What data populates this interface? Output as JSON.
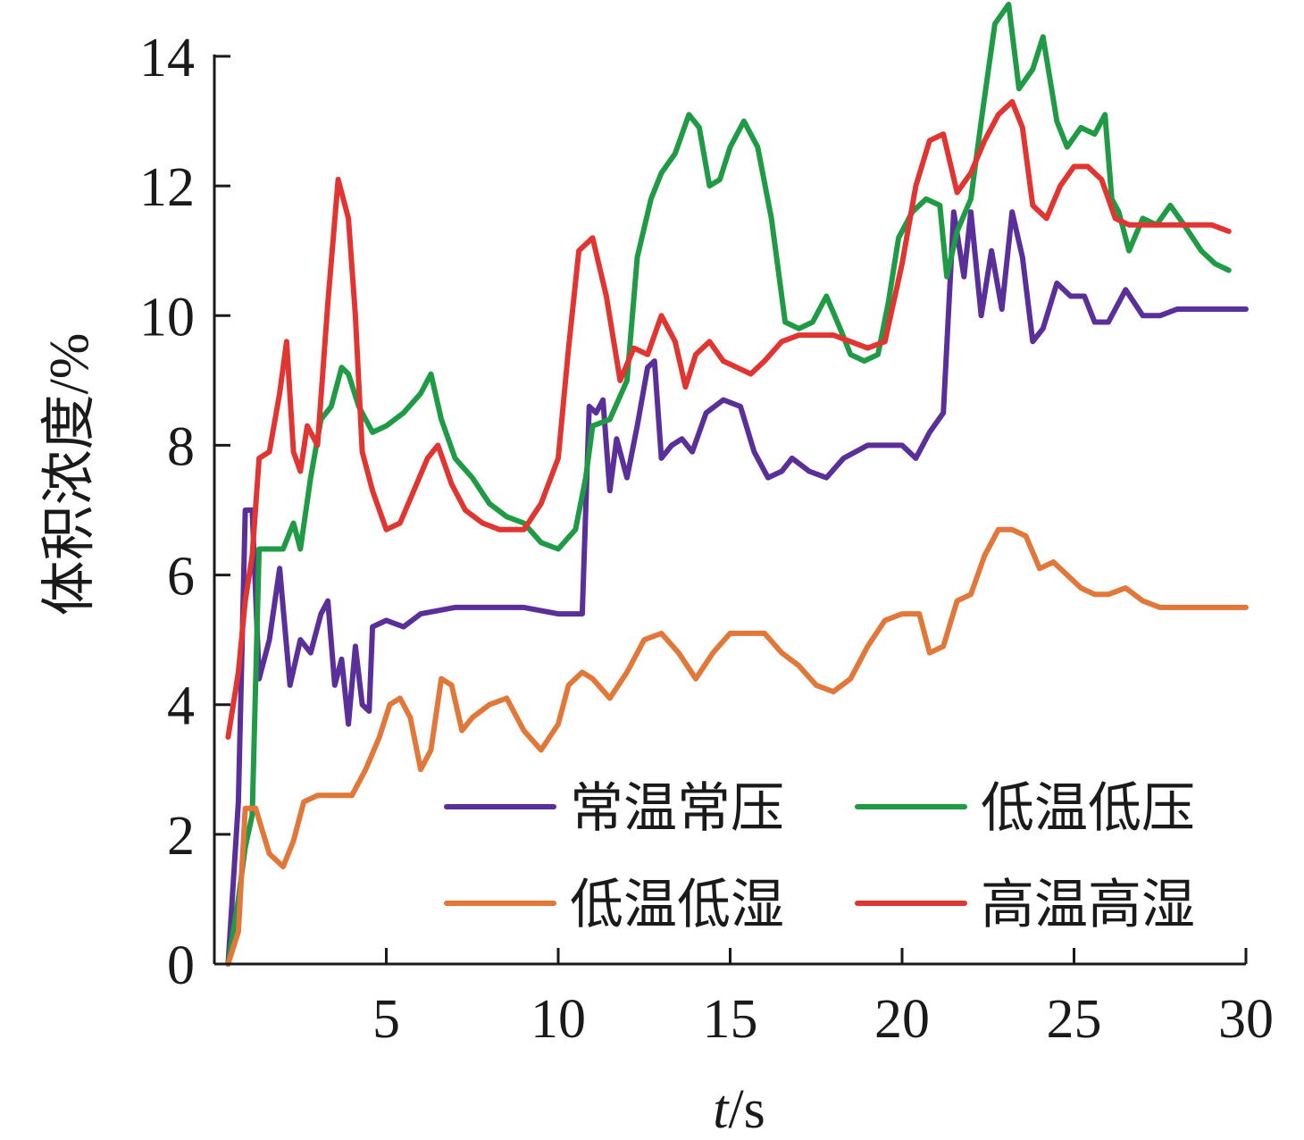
{
  "chart_data": {
    "type": "line",
    "xlabel_italic": "t",
    "xlabel_unit": "/s",
    "ylabel": "体积浓度/%",
    "xlim": [
      0,
      30
    ],
    "ylim": [
      0,
      14
    ],
    "x_ticks": [
      5,
      10,
      15,
      20,
      25,
      30
    ],
    "y_ticks": [
      0,
      2,
      4,
      6,
      8,
      10,
      12,
      14
    ],
    "legend_position": "lower-right",
    "grid": false,
    "series": [
      {
        "name": "常温常压",
        "color": "#5b2f9a",
        "points": [
          [
            0.4,
            0
          ],
          [
            0.7,
            2.5
          ],
          [
            0.9,
            7.0
          ],
          [
            1.1,
            7.0
          ],
          [
            1.3,
            4.4
          ],
          [
            1.6,
            5.0
          ],
          [
            1.9,
            6.1
          ],
          [
            2.2,
            4.3
          ],
          [
            2.5,
            5.0
          ],
          [
            2.8,
            4.8
          ],
          [
            3.1,
            5.4
          ],
          [
            3.3,
            5.6
          ],
          [
            3.5,
            4.3
          ],
          [
            3.7,
            4.7
          ],
          [
            3.9,
            3.7
          ],
          [
            4.1,
            4.9
          ],
          [
            4.3,
            4.0
          ],
          [
            4.5,
            3.9
          ],
          [
            4.6,
            5.2
          ],
          [
            5.0,
            5.3
          ],
          [
            5.5,
            5.2
          ],
          [
            6.0,
            5.4
          ],
          [
            7.0,
            5.5
          ],
          [
            8.0,
            5.5
          ],
          [
            9.0,
            5.5
          ],
          [
            10.0,
            5.4
          ],
          [
            10.7,
            5.4
          ],
          [
            10.9,
            8.6
          ],
          [
            11.1,
            8.5
          ],
          [
            11.3,
            8.7
          ],
          [
            11.5,
            7.3
          ],
          [
            11.7,
            8.1
          ],
          [
            12.0,
            7.5
          ],
          [
            12.3,
            8.3
          ],
          [
            12.6,
            9.2
          ],
          [
            12.8,
            9.3
          ],
          [
            13.0,
            7.8
          ],
          [
            13.3,
            8.0
          ],
          [
            13.6,
            8.1
          ],
          [
            13.9,
            7.9
          ],
          [
            14.3,
            8.5
          ],
          [
            14.8,
            8.7
          ],
          [
            15.3,
            8.6
          ],
          [
            15.7,
            7.9
          ],
          [
            16.1,
            7.5
          ],
          [
            16.5,
            7.6
          ],
          [
            16.8,
            7.8
          ],
          [
            17.3,
            7.6
          ],
          [
            17.8,
            7.5
          ],
          [
            18.3,
            7.8
          ],
          [
            19.0,
            8.0
          ],
          [
            19.5,
            8.0
          ],
          [
            20.0,
            8.0
          ],
          [
            20.4,
            7.8
          ],
          [
            20.8,
            8.2
          ],
          [
            21.2,
            8.5
          ],
          [
            21.5,
            11.6
          ],
          [
            21.8,
            10.6
          ],
          [
            22.0,
            11.6
          ],
          [
            22.3,
            10.0
          ],
          [
            22.6,
            11.0
          ],
          [
            22.9,
            10.1
          ],
          [
            23.2,
            11.6
          ],
          [
            23.5,
            10.9
          ],
          [
            23.8,
            9.6
          ],
          [
            24.1,
            9.8
          ],
          [
            24.5,
            10.5
          ],
          [
            24.9,
            10.3
          ],
          [
            25.3,
            10.3
          ],
          [
            25.6,
            9.9
          ],
          [
            26.0,
            9.9
          ],
          [
            26.5,
            10.4
          ],
          [
            27.0,
            10.0
          ],
          [
            27.5,
            10.0
          ],
          [
            28.0,
            10.1
          ],
          [
            29.0,
            10.1
          ],
          [
            30.0,
            10.1
          ]
        ]
      },
      {
        "name": "低温低压",
        "color": "#1f9a45",
        "points": [
          [
            0.4,
            0
          ],
          [
            0.7,
            1.0
          ],
          [
            0.9,
            1.8
          ],
          [
            1.1,
            2.3
          ],
          [
            1.3,
            6.4
          ],
          [
            1.6,
            6.4
          ],
          [
            2.0,
            6.4
          ],
          [
            2.3,
            6.8
          ],
          [
            2.5,
            6.4
          ],
          [
            2.8,
            7.5
          ],
          [
            3.1,
            8.4
          ],
          [
            3.4,
            8.6
          ],
          [
            3.7,
            9.2
          ],
          [
            3.9,
            9.1
          ],
          [
            4.2,
            8.6
          ],
          [
            4.6,
            8.2
          ],
          [
            5.0,
            8.3
          ],
          [
            5.5,
            8.5
          ],
          [
            6.0,
            8.8
          ],
          [
            6.3,
            9.1
          ],
          [
            6.6,
            8.4
          ],
          [
            7.0,
            7.8
          ],
          [
            7.5,
            7.5
          ],
          [
            8.0,
            7.1
          ],
          [
            8.5,
            6.9
          ],
          [
            9.0,
            6.8
          ],
          [
            9.5,
            6.5
          ],
          [
            10.0,
            6.4
          ],
          [
            10.5,
            6.7
          ],
          [
            10.8,
            7.5
          ],
          [
            11.0,
            8.3
          ],
          [
            11.5,
            8.4
          ],
          [
            12.0,
            9.0
          ],
          [
            12.3,
            10.9
          ],
          [
            12.7,
            11.8
          ],
          [
            13.0,
            12.2
          ],
          [
            13.4,
            12.5
          ],
          [
            13.8,
            13.1
          ],
          [
            14.1,
            12.9
          ],
          [
            14.4,
            12.0
          ],
          [
            14.7,
            12.1
          ],
          [
            15.0,
            12.6
          ],
          [
            15.4,
            13.0
          ],
          [
            15.8,
            12.6
          ],
          [
            16.2,
            11.5
          ],
          [
            16.6,
            9.9
          ],
          [
            17.0,
            9.8
          ],
          [
            17.4,
            9.9
          ],
          [
            17.8,
            10.3
          ],
          [
            18.2,
            9.8
          ],
          [
            18.5,
            9.4
          ],
          [
            18.9,
            9.3
          ],
          [
            19.3,
            9.4
          ],
          [
            19.6,
            10.2
          ],
          [
            19.9,
            11.2
          ],
          [
            20.3,
            11.6
          ],
          [
            20.7,
            11.8
          ],
          [
            21.1,
            11.7
          ],
          [
            21.3,
            10.6
          ],
          [
            21.6,
            11.3
          ],
          [
            22.0,
            11.8
          ],
          [
            22.3,
            13.0
          ],
          [
            22.7,
            14.5
          ],
          [
            23.1,
            14.8
          ],
          [
            23.4,
            13.5
          ],
          [
            23.8,
            13.8
          ],
          [
            24.1,
            14.3
          ],
          [
            24.5,
            13.0
          ],
          [
            24.8,
            12.6
          ],
          [
            25.2,
            12.9
          ],
          [
            25.6,
            12.8
          ],
          [
            25.9,
            13.1
          ],
          [
            26.1,
            11.8
          ],
          [
            26.3,
            11.6
          ],
          [
            26.6,
            11.0
          ],
          [
            27.0,
            11.5
          ],
          [
            27.4,
            11.4
          ],
          [
            27.8,
            11.7
          ],
          [
            28.2,
            11.4
          ],
          [
            28.7,
            11.0
          ],
          [
            29.1,
            10.8
          ],
          [
            29.5,
            10.7
          ]
        ]
      },
      {
        "name": "低温低湿",
        "color": "#e2773a",
        "points": [
          [
            0.4,
            0
          ],
          [
            0.7,
            0.5
          ],
          [
            0.9,
            2.4
          ],
          [
            1.2,
            2.4
          ],
          [
            1.6,
            1.7
          ],
          [
            2.0,
            1.5
          ],
          [
            2.3,
            1.9
          ],
          [
            2.6,
            2.5
          ],
          [
            3.0,
            2.6
          ],
          [
            3.5,
            2.6
          ],
          [
            4.0,
            2.6
          ],
          [
            4.4,
            3.0
          ],
          [
            4.8,
            3.5
          ],
          [
            5.1,
            4.0
          ],
          [
            5.4,
            4.1
          ],
          [
            5.7,
            3.8
          ],
          [
            6.0,
            3.0
          ],
          [
            6.3,
            3.3
          ],
          [
            6.6,
            4.4
          ],
          [
            6.9,
            4.3
          ],
          [
            7.2,
            3.6
          ],
          [
            7.5,
            3.8
          ],
          [
            8.0,
            4.0
          ],
          [
            8.5,
            4.1
          ],
          [
            9.0,
            3.6
          ],
          [
            9.5,
            3.3
          ],
          [
            10.0,
            3.7
          ],
          [
            10.3,
            4.3
          ],
          [
            10.7,
            4.5
          ],
          [
            11.0,
            4.4
          ],
          [
            11.5,
            4.1
          ],
          [
            12.0,
            4.5
          ],
          [
            12.5,
            5.0
          ],
          [
            13.0,
            5.1
          ],
          [
            13.5,
            4.8
          ],
          [
            14.0,
            4.4
          ],
          [
            14.5,
            4.8
          ],
          [
            15.0,
            5.1
          ],
          [
            15.5,
            5.1
          ],
          [
            16.0,
            5.1
          ],
          [
            16.5,
            4.8
          ],
          [
            17.0,
            4.6
          ],
          [
            17.5,
            4.3
          ],
          [
            18.0,
            4.2
          ],
          [
            18.5,
            4.4
          ],
          [
            19.0,
            4.9
          ],
          [
            19.5,
            5.3
          ],
          [
            20.0,
            5.4
          ],
          [
            20.5,
            5.4
          ],
          [
            20.8,
            4.8
          ],
          [
            21.2,
            4.9
          ],
          [
            21.6,
            5.6
          ],
          [
            22.0,
            5.7
          ],
          [
            22.4,
            6.3
          ],
          [
            22.8,
            6.7
          ],
          [
            23.2,
            6.7
          ],
          [
            23.6,
            6.6
          ],
          [
            24.0,
            6.1
          ],
          [
            24.4,
            6.2
          ],
          [
            24.8,
            6.0
          ],
          [
            25.2,
            5.8
          ],
          [
            25.6,
            5.7
          ],
          [
            26.0,
            5.7
          ],
          [
            26.5,
            5.8
          ],
          [
            27.0,
            5.6
          ],
          [
            27.5,
            5.5
          ],
          [
            28.0,
            5.5
          ],
          [
            29.0,
            5.5
          ],
          [
            30.0,
            5.5
          ]
        ]
      },
      {
        "name": "高温高湿",
        "color": "#e03530",
        "points": [
          [
            0.4,
            3.5
          ],
          [
            0.7,
            4.5
          ],
          [
            0.9,
            5.6
          ],
          [
            1.1,
            6.3
          ],
          [
            1.3,
            7.8
          ],
          [
            1.6,
            7.9
          ],
          [
            1.9,
            8.8
          ],
          [
            2.1,
            9.6
          ],
          [
            2.3,
            7.9
          ],
          [
            2.5,
            7.6
          ],
          [
            2.7,
            8.3
          ],
          [
            3.0,
            8.0
          ],
          [
            3.3,
            10.2
          ],
          [
            3.6,
            12.1
          ],
          [
            3.9,
            11.5
          ],
          [
            4.1,
            10.0
          ],
          [
            4.3,
            7.9
          ],
          [
            4.6,
            7.3
          ],
          [
            5.0,
            6.7
          ],
          [
            5.4,
            6.8
          ],
          [
            5.8,
            7.3
          ],
          [
            6.2,
            7.8
          ],
          [
            6.5,
            8.0
          ],
          [
            6.9,
            7.4
          ],
          [
            7.3,
            7.0
          ],
          [
            7.8,
            6.8
          ],
          [
            8.3,
            6.7
          ],
          [
            9.0,
            6.7
          ],
          [
            9.5,
            7.1
          ],
          [
            10.0,
            7.8
          ],
          [
            10.3,
            9.5
          ],
          [
            10.6,
            11.0
          ],
          [
            11.0,
            11.2
          ],
          [
            11.4,
            10.3
          ],
          [
            11.8,
            9.0
          ],
          [
            12.2,
            9.5
          ],
          [
            12.6,
            9.4
          ],
          [
            13.0,
            10.0
          ],
          [
            13.4,
            9.6
          ],
          [
            13.7,
            8.9
          ],
          [
            14.0,
            9.4
          ],
          [
            14.4,
            9.6
          ],
          [
            14.8,
            9.3
          ],
          [
            15.2,
            9.2
          ],
          [
            15.6,
            9.1
          ],
          [
            16.0,
            9.3
          ],
          [
            16.5,
            9.6
          ],
          [
            17.0,
            9.7
          ],
          [
            17.5,
            9.7
          ],
          [
            18.0,
            9.7
          ],
          [
            18.5,
            9.6
          ],
          [
            19.0,
            9.5
          ],
          [
            19.5,
            9.6
          ],
          [
            20.0,
            10.8
          ],
          [
            20.4,
            12.0
          ],
          [
            20.8,
            12.7
          ],
          [
            21.2,
            12.8
          ],
          [
            21.6,
            11.9
          ],
          [
            22.0,
            12.2
          ],
          [
            22.4,
            12.7
          ],
          [
            22.8,
            13.1
          ],
          [
            23.2,
            13.3
          ],
          [
            23.5,
            12.9
          ],
          [
            23.8,
            11.7
          ],
          [
            24.2,
            11.5
          ],
          [
            24.6,
            12.0
          ],
          [
            25.0,
            12.3
          ],
          [
            25.4,
            12.3
          ],
          [
            25.8,
            12.1
          ],
          [
            26.2,
            11.5
          ],
          [
            26.6,
            11.4
          ],
          [
            27.0,
            11.4
          ],
          [
            28.0,
            11.4
          ],
          [
            29.0,
            11.4
          ],
          [
            29.5,
            11.3
          ]
        ]
      }
    ]
  },
  "legend": [
    {
      "label": "常温常压",
      "color": "#5b2f9a"
    },
    {
      "label": "低温低压",
      "color": "#1f9a45"
    },
    {
      "label": "低温低湿",
      "color": "#e2773a"
    },
    {
      "label": "高温高湿",
      "color": "#e03530"
    }
  ]
}
